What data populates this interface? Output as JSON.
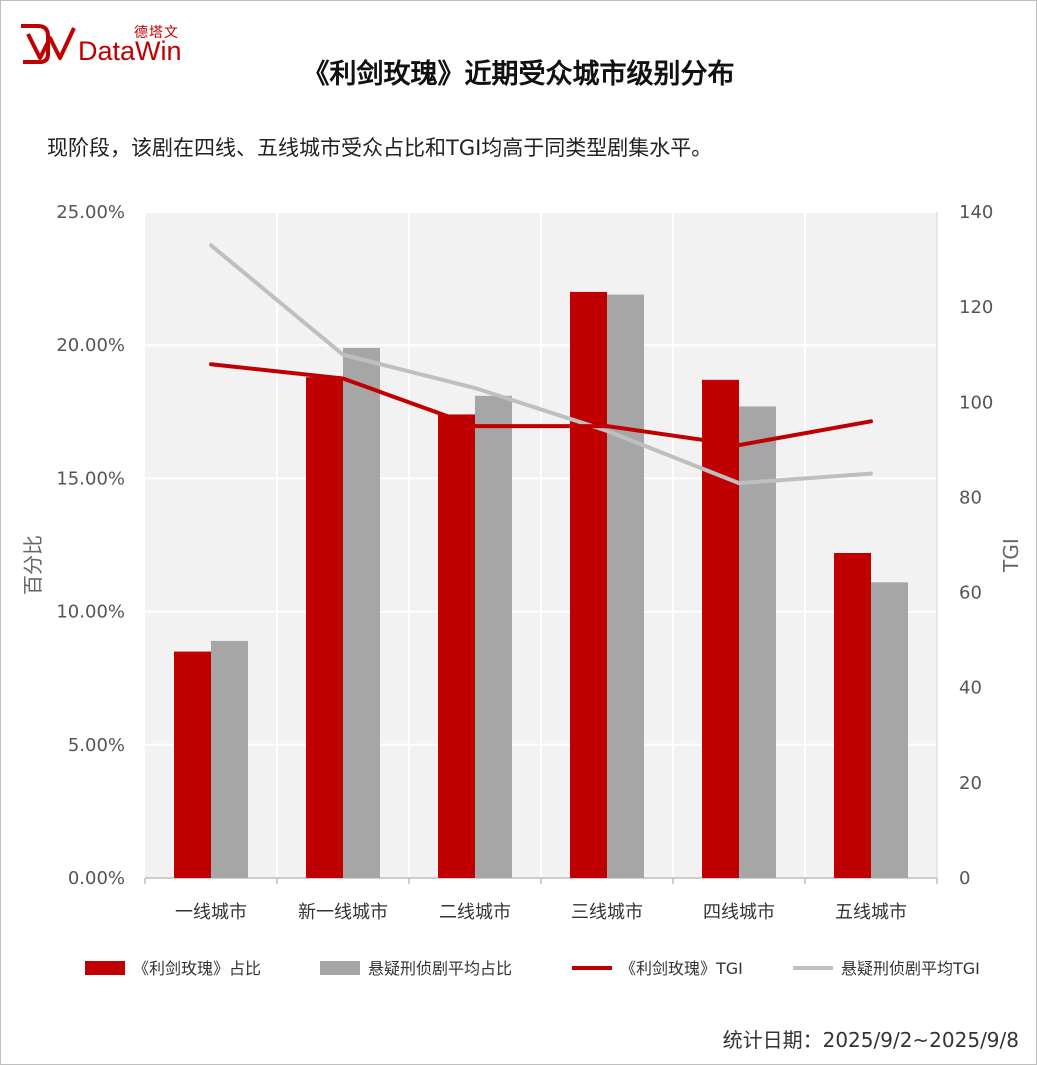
{
  "brand": {
    "name_cn": "德塔文",
    "name_en": "DataWin"
  },
  "title": "《利剑玫瑰》近期受众城市级别分布",
  "subtitle": "现阶段，该剧在四线、五线城市受众占比和TGI均高于同类型剧集水平。",
  "footer": "统计日期：2025/9/2~2025/9/8",
  "colors": {
    "brand_red": "#c00000",
    "gray_bar": "#a6a6a6",
    "gray_line": "#bfbfbf",
    "plot_bg": "#f2f2f2",
    "grid": "#ffffff"
  },
  "chart_data": {
    "type": "bar",
    "categories": [
      "一线城市",
      "新一线城市",
      "二线城市",
      "三线城市",
      "四线城市",
      "五线城市"
    ],
    "y_left": {
      "label": "百分比",
      "ticks": [
        "0.00%",
        "5.00%",
        "10.00%",
        "15.00%",
        "20.00%",
        "25.00%"
      ],
      "range": [
        0,
        25
      ]
    },
    "y_right": {
      "label": "TGI",
      "ticks": [
        "0",
        "20",
        "40",
        "60",
        "80",
        "100",
        "120",
        "140"
      ],
      "range": [
        0,
        140
      ]
    },
    "series": [
      {
        "name": "《利剑玫瑰》占比",
        "kind": "bar",
        "axis": "left",
        "color": "#c00000",
        "values": [
          8.5,
          18.8,
          17.4,
          22.0,
          18.7,
          12.2
        ]
      },
      {
        "name": "悬疑刑侦剧平均占比",
        "kind": "bar",
        "axis": "left",
        "color": "#a6a6a6",
        "values": [
          8.9,
          19.9,
          18.1,
          21.9,
          17.7,
          11.1
        ]
      },
      {
        "name": "《利剑玫瑰》TGI",
        "kind": "line",
        "axis": "right",
        "color": "#c00000",
        "values": [
          108,
          105,
          95,
          95,
          91,
          96
        ]
      },
      {
        "name": "悬疑刑侦剧平均TGI",
        "kind": "line",
        "axis": "right",
        "color": "#bfbfbf",
        "values": [
          133,
          110,
          103,
          94,
          83,
          85
        ]
      }
    ],
    "grid": true,
    "legend_position": "bottom"
  }
}
